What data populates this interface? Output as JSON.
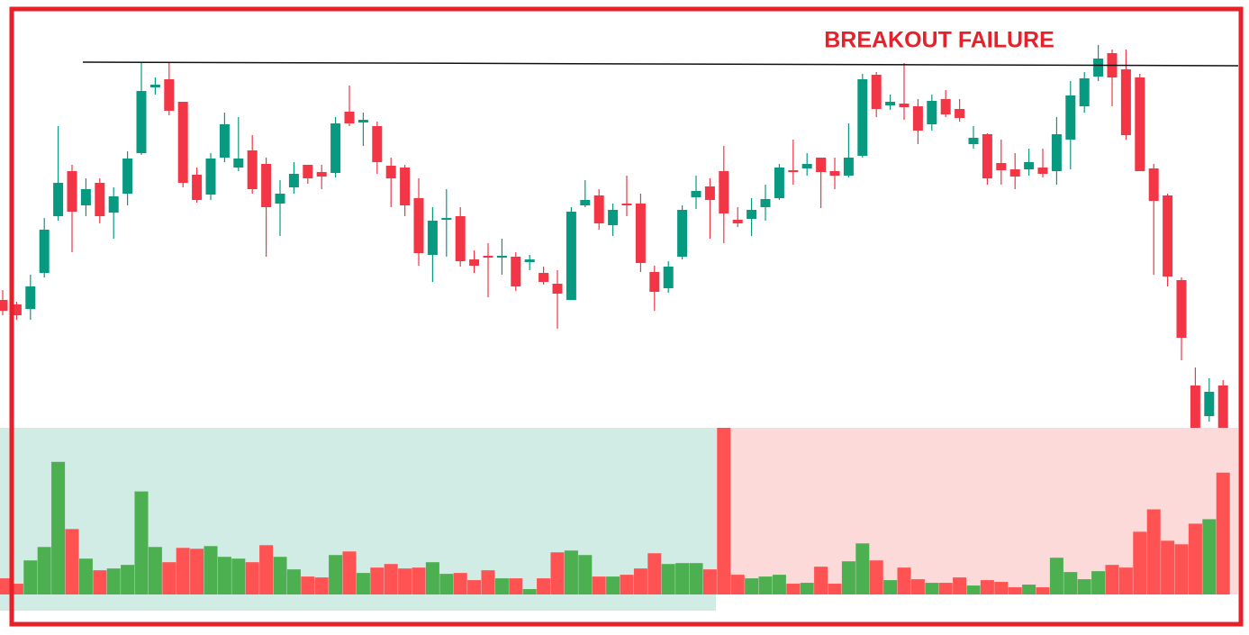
{
  "chart_data": {
    "type": "candlestick",
    "title": "BREAKOUT FAILURE",
    "up_color": "#089981",
    "down_color": "#f23645",
    "volume_up_color": "#4caf50",
    "volume_down_color": "#ff5252",
    "ylim": [
      0,
      475
    ],
    "volume_ylim": [
      0,
      186
    ],
    "open": [
      142,
      137,
      132,
      172,
      235,
      285,
      247,
      272,
      239,
      260,
      305,
      378,
      387,
      362,
      281,
      259,
      300,
      289,
      308,
      293,
      249,
      267,
      292,
      284,
      283,
      351,
      339,
      335,
      291,
      289,
      255,
      192,
      231,
      235,
      187,
      191,
      189,
      190,
      184,
      172,
      160,
      142,
      247,
      258,
      225,
      249,
      249,
      173,
      155,
      190,
      256,
      268,
      285,
      231,
      232,
      245,
      255,
      286,
      288,
      300,
      285,
      280,
      302,
      392,
      358,
      360,
      357,
      337,
      365,
      354,
      315,
      326,
      294,
      287,
      287,
      289,
      285,
      320,
      357,
      390,
      416,
      398,
      389,
      288,
      258,
      164,
      47,
      13,
      47
    ],
    "high": [
      153,
      140,
      170,
      233,
      335,
      292,
      277,
      277,
      267,
      307,
      405,
      389,
      405,
      362,
      289,
      305,
      350,
      345,
      325,
      300,
      275,
      295,
      292,
      292,
      345,
      380,
      350,
      340,
      300,
      292,
      277,
      245,
      265,
      245,
      197,
      205,
      210,
      195,
      192,
      179,
      175,
      245,
      275,
      265,
      249,
      280,
      260,
      180,
      185,
      247,
      280,
      277,
      313,
      245,
      255,
      270,
      293,
      320,
      305,
      300,
      300,
      338,
      393,
      395,
      370,
      405,
      365,
      370,
      375,
      365,
      335,
      327,
      320,
      305,
      310,
      310,
      345,
      385,
      395,
      425,
      420,
      420,
      393,
      293,
      260,
      167,
      67,
      55,
      53
    ],
    "low": [
      125,
      120,
      120,
      167,
      230,
      195,
      235,
      227,
      210,
      247,
      303,
      370,
      347,
      267,
      250,
      253,
      295,
      285,
      260,
      190,
      213,
      260,
      271,
      265,
      278,
      335,
      313,
      282,
      245,
      235,
      180,
      162,
      190,
      179,
      172,
      145,
      170,
      152,
      175,
      159,
      110,
      142,
      245,
      220,
      213,
      235,
      173,
      130,
      150,
      187,
      243,
      210,
      205,
      223,
      213,
      230,
      253,
      270,
      280,
      244,
      265,
      278,
      300,
      345,
      353,
      342,
      315,
      330,
      345,
      340,
      310,
      270,
      270,
      265,
      280,
      278,
      270,
      287,
      350,
      385,
      357,
      320,
      285,
      170,
      157,
      75,
      -5,
      7,
      -3
    ],
    "close": [
      130,
      125,
      157,
      220,
      272,
      240,
      265,
      235,
      257,
      299,
      374,
      381,
      352,
      272,
      253,
      299,
      337,
      299,
      265,
      245,
      260,
      282,
      277,
      279,
      338,
      338,
      342,
      295,
      277,
      247,
      194,
      230,
      233,
      185,
      180,
      189,
      191,
      157,
      187,
      162,
      149,
      240,
      253,
      227,
      242,
      247,
      183,
      151,
      179,
      242,
      263,
      253,
      238,
      227,
      242,
      254,
      289,
      284,
      293,
      284,
      280,
      300,
      387,
      354,
      362,
      356,
      330,
      363,
      348,
      344,
      322,
      277,
      286,
      279,
      295,
      282,
      326,
      369,
      388,
      410,
      389,
      325,
      285,
      252,
      168,
      100,
      0,
      40,
      0
    ],
    "volume": [
      18,
      12,
      38,
      53,
      148,
      73,
      40,
      27,
      29,
      33,
      115,
      53,
      36,
      52,
      51,
      54,
      42,
      40,
      36,
      55,
      42,
      28,
      20,
      19,
      44,
      48,
      24,
      30,
      34,
      29,
      30,
      36,
      23,
      24,
      16,
      27,
      18,
      18,
      6,
      18,
      47,
      49,
      44,
      20,
      20,
      22,
      29,
      46,
      34,
      35,
      35,
      28,
      186,
      22,
      18,
      20,
      22,
      12,
      13,
      31,
      12,
      37,
      57,
      38,
      16,
      30,
      17,
      13,
      13,
      19,
      10,
      16,
      14,
      8,
      11,
      8,
      41,
      25,
      17,
      26,
      33,
      30,
      70,
      95,
      60,
      56,
      79,
      84,
      136
    ]
  }
}
